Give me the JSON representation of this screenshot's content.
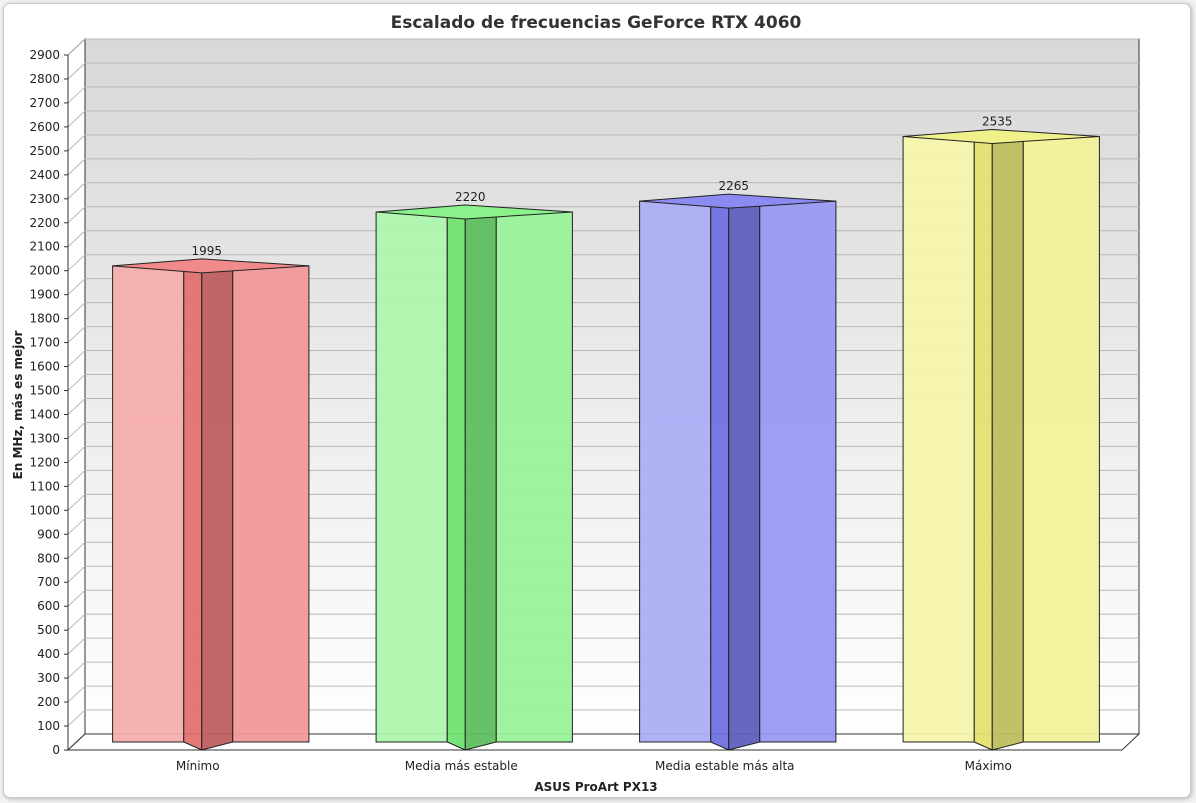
{
  "chart_data": {
    "type": "bar",
    "title": "Escalado de frecuencias GeForce RTX 4060",
    "xlabel": "ASUS ProArt PX13",
    "ylabel": "En MHz, más es mejor",
    "categories": [
      "Mínimo",
      "Media más estable",
      "Media estable más alta",
      "Máximo"
    ],
    "values": [
      1995,
      2220,
      2265,
      2535
    ],
    "data_labels": [
      "1995",
      "2220",
      "2265",
      "2535"
    ],
    "colors": [
      "#ee7777",
      "#77ee77",
      "#7777ee",
      "#eeee77"
    ],
    "ylim": [
      0,
      2900
    ],
    "y_ticks": [
      "0",
      "100",
      "200",
      "300",
      "400",
      "500",
      "600",
      "700",
      "800",
      "900",
      "1000",
      "1100",
      "1200",
      "1300",
      "1400",
      "1500",
      "1600",
      "1700",
      "1800",
      "1900",
      "2000",
      "2100",
      "2200",
      "2300",
      "2400",
      "2500",
      "2600",
      "2700",
      "2800",
      "2900"
    ],
    "grid": true,
    "legend": "none"
  }
}
